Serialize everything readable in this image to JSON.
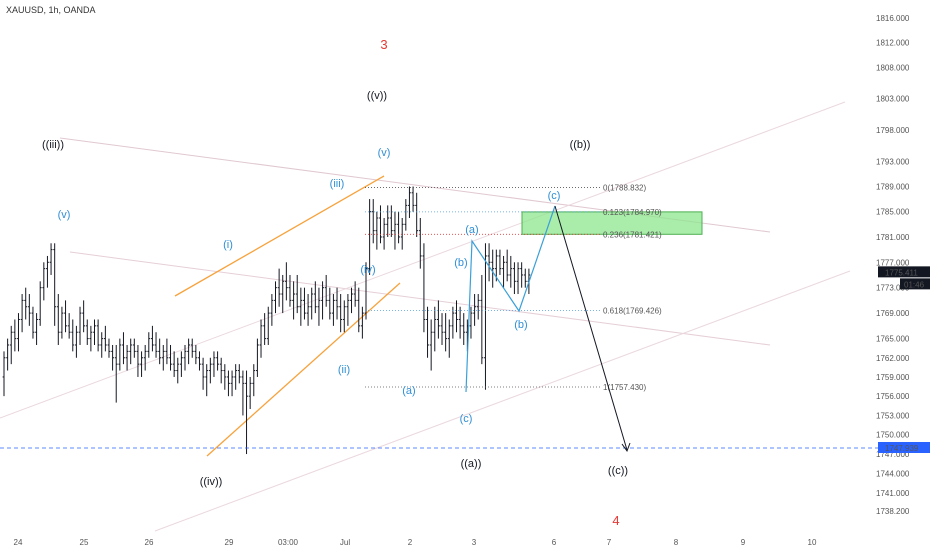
{
  "symbol": "XAUUSD, 1h, OANDA",
  "price_tag": {
    "price": "1775.411",
    "countdown": "01:46",
    "bg": "#131722"
  },
  "line_tag": {
    "price": "1747.939",
    "bg": "#2962ff"
  },
  "chart_data": {
    "type": "candlestick",
    "title": "XAUUSD, 1h, OANDA",
    "xlabel": "",
    "ylabel": "",
    "ylim": [
      1736.8,
      1817.9
    ],
    "y_scale": "log",
    "y_ticks": [
      "1816.000",
      "1812.000",
      "1808.000",
      "1803.000",
      "1798.000",
      "1793.000",
      "1789.000",
      "1785.000",
      "1781.000",
      "1777.000",
      "1773.000",
      "1769.000",
      "1765.000",
      "1762.000",
      "1759.000",
      "1756.000",
      "1753.000",
      "1750.000",
      "1747.000",
      "1744.000",
      "1741.000",
      "1738.200"
    ],
    "x_ticks": [
      "24",
      "25",
      "26",
      "29",
      "03:00",
      "Jul",
      "2",
      "3",
      "6",
      "7",
      "8",
      "9",
      "10"
    ],
    "candles_from": "24 (offset +4)",
    "candle_values": [
      [
        1759,
        1763,
        1756,
        1762
      ],
      [
        1762,
        1765,
        1760,
        1764
      ],
      [
        1764,
        1767,
        1761,
        1766
      ],
      [
        1766,
        1768,
        1763,
        1765
      ],
      [
        1765,
        1769,
        1763,
        1768
      ],
      [
        1768,
        1772,
        1766,
        1771
      ],
      [
        1771,
        1773,
        1768,
        1770
      ],
      [
        1770,
        1772,
        1767,
        1769
      ],
      [
        1769,
        1770,
        1765,
        1766
      ],
      [
        1766,
        1769,
        1764,
        1768
      ],
      [
        1768,
        1774,
        1767,
        1773
      ],
      [
        1773,
        1777,
        1771,
        1776
      ],
      [
        1776,
        1778,
        1773,
        1777
      ],
      [
        1777,
        1780,
        1775,
        1779
      ],
      [
        1779,
        1780,
        1767,
        1770
      ],
      [
        1770,
        1772,
        1764,
        1766
      ],
      [
        1766,
        1770,
        1765,
        1769
      ],
      [
        1769,
        1771,
        1766,
        1767
      ],
      [
        1767,
        1769,
        1765,
        1766
      ],
      [
        1766,
        1768,
        1763,
        1764
      ],
      [
        1764,
        1767,
        1762,
        1766
      ],
      [
        1766,
        1770,
        1764,
        1769
      ],
      [
        1769,
        1771,
        1766,
        1767
      ],
      [
        1767,
        1768,
        1764,
        1765
      ],
      [
        1765,
        1767,
        1763,
        1766
      ],
      [
        1766,
        1768,
        1764,
        1767
      ],
      [
        1767,
        1768,
        1763,
        1764
      ],
      [
        1764,
        1766,
        1762,
        1765
      ],
      [
        1765,
        1767,
        1763,
        1764
      ],
      [
        1764,
        1765,
        1762,
        1763
      ],
      [
        1763,
        1764,
        1760,
        1762
      ],
      [
        1762,
        1764,
        1755,
        1761
      ],
      [
        1761,
        1765,
        1760,
        1764
      ],
      [
        1764,
        1766,
        1761,
        1762
      ],
      [
        1762,
        1764,
        1760,
        1763
      ],
      [
        1763,
        1765,
        1761,
        1764
      ],
      [
        1764,
        1765,
        1762,
        1763
      ],
      [
        1763,
        1764,
        1759,
        1761
      ],
      [
        1761,
        1763,
        1759,
        1762
      ],
      [
        1762,
        1764,
        1760,
        1763
      ],
      [
        1763,
        1766,
        1762,
        1765
      ],
      [
        1765,
        1767,
        1763,
        1764
      ],
      [
        1764,
        1766,
        1762,
        1763
      ],
      [
        1763,
        1765,
        1761,
        1762
      ],
      [
        1762,
        1764,
        1760,
        1763
      ],
      [
        1763,
        1765,
        1761,
        1762
      ],
      [
        1762,
        1764,
        1760,
        1761
      ],
      [
        1761,
        1763,
        1759,
        1760
      ],
      [
        1760,
        1762,
        1758,
        1761
      ],
      [
        1761,
        1763,
        1759,
        1762
      ],
      [
        1762,
        1764,
        1760,
        1763
      ],
      [
        1763,
        1765,
        1761,
        1764
      ],
      [
        1764,
        1765,
        1762,
        1763
      ],
      [
        1763,
        1764,
        1761,
        1762
      ],
      [
        1762,
        1763,
        1760,
        1761
      ],
      [
        1761,
        1762,
        1757,
        1759
      ],
      [
        1759,
        1761,
        1756,
        1760
      ],
      [
        1760,
        1762,
        1758,
        1761
      ],
      [
        1761,
        1763,
        1759,
        1762
      ],
      [
        1762,
        1763,
        1760,
        1761
      ],
      [
        1761,
        1762,
        1758,
        1760
      ],
      [
        1760,
        1761,
        1757,
        1759
      ],
      [
        1759,
        1760,
        1756,
        1758
      ],
      [
        1758,
        1760,
        1756,
        1759
      ],
      [
        1759,
        1761,
        1757,
        1760
      ],
      [
        1760,
        1761,
        1758,
        1759
      ],
      [
        1759,
        1760,
        1753,
        1758
      ],
      [
        1758,
        1760,
        1747,
        1756
      ],
      [
        1756,
        1759,
        1754,
        1758
      ],
      [
        1758,
        1761,
        1756,
        1760
      ],
      [
        1760,
        1765,
        1759,
        1764
      ],
      [
        1764,
        1768,
        1762,
        1767
      ],
      [
        1767,
        1769,
        1764,
        1765
      ],
      [
        1765,
        1770,
        1764,
        1769
      ],
      [
        1769,
        1772,
        1767,
        1771
      ],
      [
        1771,
        1774,
        1769,
        1773
      ],
      [
        1773,
        1776,
        1770,
        1772
      ],
      [
        1772,
        1775,
        1769,
        1774
      ],
      [
        1774,
        1777,
        1771,
        1773
      ],
      [
        1773,
        1775,
        1770,
        1771
      ],
      [
        1771,
        1774,
        1768,
        1772
      ],
      [
        1772,
        1775,
        1769,
        1770
      ],
      [
        1770,
        1773,
        1767,
        1771
      ],
      [
        1771,
        1773,
        1768,
        1769
      ],
      [
        1769,
        1772,
        1767,
        1770
      ],
      [
        1770,
        1773,
        1768,
        1772
      ],
      [
        1772,
        1774,
        1769,
        1770
      ],
      [
        1770,
        1773,
        1767,
        1771
      ],
      [
        1771,
        1774,
        1768,
        1773
      ],
      [
        1773,
        1775,
        1770,
        1771
      ],
      [
        1771,
        1773,
        1768,
        1769
      ],
      [
        1769,
        1772,
        1767,
        1771
      ],
      [
        1771,
        1773,
        1768,
        1770
      ],
      [
        1770,
        1772,
        1766,
        1768
      ],
      [
        1768,
        1771,
        1766,
        1770
      ],
      [
        1770,
        1772,
        1767,
        1771
      ],
      [
        1771,
        1773,
        1769,
        1772
      ],
      [
        1772,
        1774,
        1770,
        1771
      ],
      [
        1771,
        1773,
        1766,
        1767
      ],
      [
        1767,
        1770,
        1765,
        1769
      ],
      [
        1769,
        1777,
        1768,
        1776
      ],
      [
        1776,
        1787,
        1775,
        1785
      ],
      [
        1785,
        1787,
        1780,
        1782
      ],
      [
        1782,
        1785,
        1779,
        1784
      ],
      [
        1784,
        1786,
        1780,
        1781
      ],
      [
        1781,
        1784,
        1779,
        1783
      ],
      [
        1783,
        1786,
        1781,
        1784
      ],
      [
        1784,
        1786,
        1781,
        1782
      ],
      [
        1782,
        1785,
        1779,
        1783
      ],
      [
        1783,
        1785,
        1780,
        1781
      ],
      [
        1781,
        1784,
        1779,
        1783
      ],
      [
        1783,
        1787,
        1782,
        1786
      ],
      [
        1786,
        1789,
        1784,
        1788
      ],
      [
        1788,
        1789,
        1785,
        1786
      ],
      [
        1786,
        1788,
        1781,
        1782
      ],
      [
        1782,
        1784,
        1776,
        1778
      ],
      [
        1778,
        1780,
        1766,
        1768
      ],
      [
        1768,
        1770,
        1762,
        1764
      ],
      [
        1764,
        1768,
        1760,
        1766
      ],
      [
        1766,
        1770,
        1763,
        1768
      ],
      [
        1768,
        1771,
        1765,
        1767
      ],
      [
        1767,
        1769,
        1764,
        1766
      ],
      [
        1766,
        1769,
        1763,
        1765
      ],
      [
        1765,
        1768,
        1762,
        1767
      ],
      [
        1767,
        1770,
        1765,
        1769
      ],
      [
        1769,
        1771,
        1766,
        1768
      ],
      [
        1768,
        1770,
        1765,
        1767
      ],
      [
        1767,
        1769,
        1764,
        1766
      ],
      [
        1766,
        1768,
        1763,
        1767
      ],
      [
        1767,
        1770,
        1765,
        1769
      ],
      [
        1769,
        1772,
        1767,
        1770
      ],
      [
        1770,
        1772,
        1768,
        1771
      ],
      [
        1771,
        1775,
        1761,
        1762
      ],
      [
        1762,
        1780,
        1757,
        1778
      ],
      [
        1778,
        1780,
        1774,
        1777
      ],
      [
        1777,
        1779,
        1773,
        1776
      ],
      [
        1776,
        1779,
        1774,
        1778
      ],
      [
        1778,
        1779,
        1775,
        1776
      ],
      [
        1776,
        1778,
        1773,
        1777
      ],
      [
        1777,
        1779,
        1774,
        1775
      ],
      [
        1775,
        1778,
        1773,
        1776
      ],
      [
        1776,
        1777,
        1772,
        1774
      ],
      [
        1774,
        1777,
        1772,
        1776
      ],
      [
        1776,
        1777,
        1773,
        1775
      ],
      [
        1775,
        1776,
        1773,
        1774
      ],
      [
        1774,
        1776,
        1772,
        1775
      ]
    ],
    "levels": [
      {
        "label": "0(1788.832)",
        "price": 1788.832
      },
      {
        "label": "0.123(1784.970)",
        "price": 1784.97
      },
      {
        "label": "0.236(1781.421)",
        "price": 1781.421
      },
      {
        "label": "0.618(1769.426)",
        "price": 1769.426
      },
      {
        "label": "1(1757.430)",
        "price": 1757.43
      }
    ],
    "dashed_level": 1747.939,
    "current_price": 1775.411,
    "wave_labels": [
      "3",
      "((v))",
      "((iii))",
      "((b))",
      "(v)",
      "(iii)",
      "(v)",
      "(c)",
      "(i)",
      "(a)",
      "(b)",
      "(iv)",
      "(b)",
      "(ii)",
      "(a)",
      "(c)",
      "((iv))",
      "((a))",
      "((c))",
      "4"
    ]
  }
}
